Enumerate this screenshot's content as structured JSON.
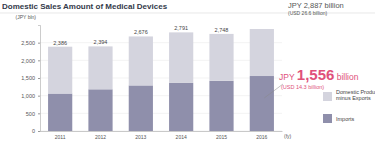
{
  "chart_data": {
    "type": "bar",
    "title": "Domestic Sales Amount of Medical Devices",
    "y_label": "(JPY bln)",
    "x_label": "(fy)",
    "categories": [
      "2011",
      "2012",
      "2013",
      "2014",
      "2015",
      "2016"
    ],
    "series": [
      {
        "name": "Imports",
        "color": "#8f8fab",
        "values": [
          1060,
          1180,
          1290,
          1360,
          1420,
          1556
        ]
      },
      {
        "name": "Domestic Production minus Exports",
        "color": "#d4d4de",
        "values": [
          1326,
          1214,
          1386,
          1431,
          1328,
          1331
        ]
      }
    ],
    "stacked": true,
    "grid": true,
    "legend": "right",
    "ylim": [
      0,
      3000
    ],
    "yticks": [
      0,
      500,
      {
        "value": 1000,
        "label": "1,000"
      },
      {
        "value": 1500,
        "label": "1,500"
      },
      {
        "value": 2000,
        "label": "2,000"
      },
      {
        "value": 2500,
        "label": "2,500"
      }
    ],
    "annotations": [
      {
        "text": "2,386",
        "x": "2011"
      },
      {
        "text": "2,394",
        "x": "2012"
      },
      {
        "text": "2,676",
        "x": "2013"
      },
      {
        "text": "2,791",
        "x": "2014"
      },
      {
        "text": "2,748",
        "x": "2015"
      },
      {
        "text": "JPY 2,887 billion",
        "x": "2016"
      },
      {
        "text": "(USD 26.6 billion)",
        "x": "2016"
      },
      {
        "text": "JPY 1,556 billion",
        "x": "2016"
      },
      {
        "text": "(USD 14.3 billion)",
        "x": "2016"
      }
    ]
  }
}
